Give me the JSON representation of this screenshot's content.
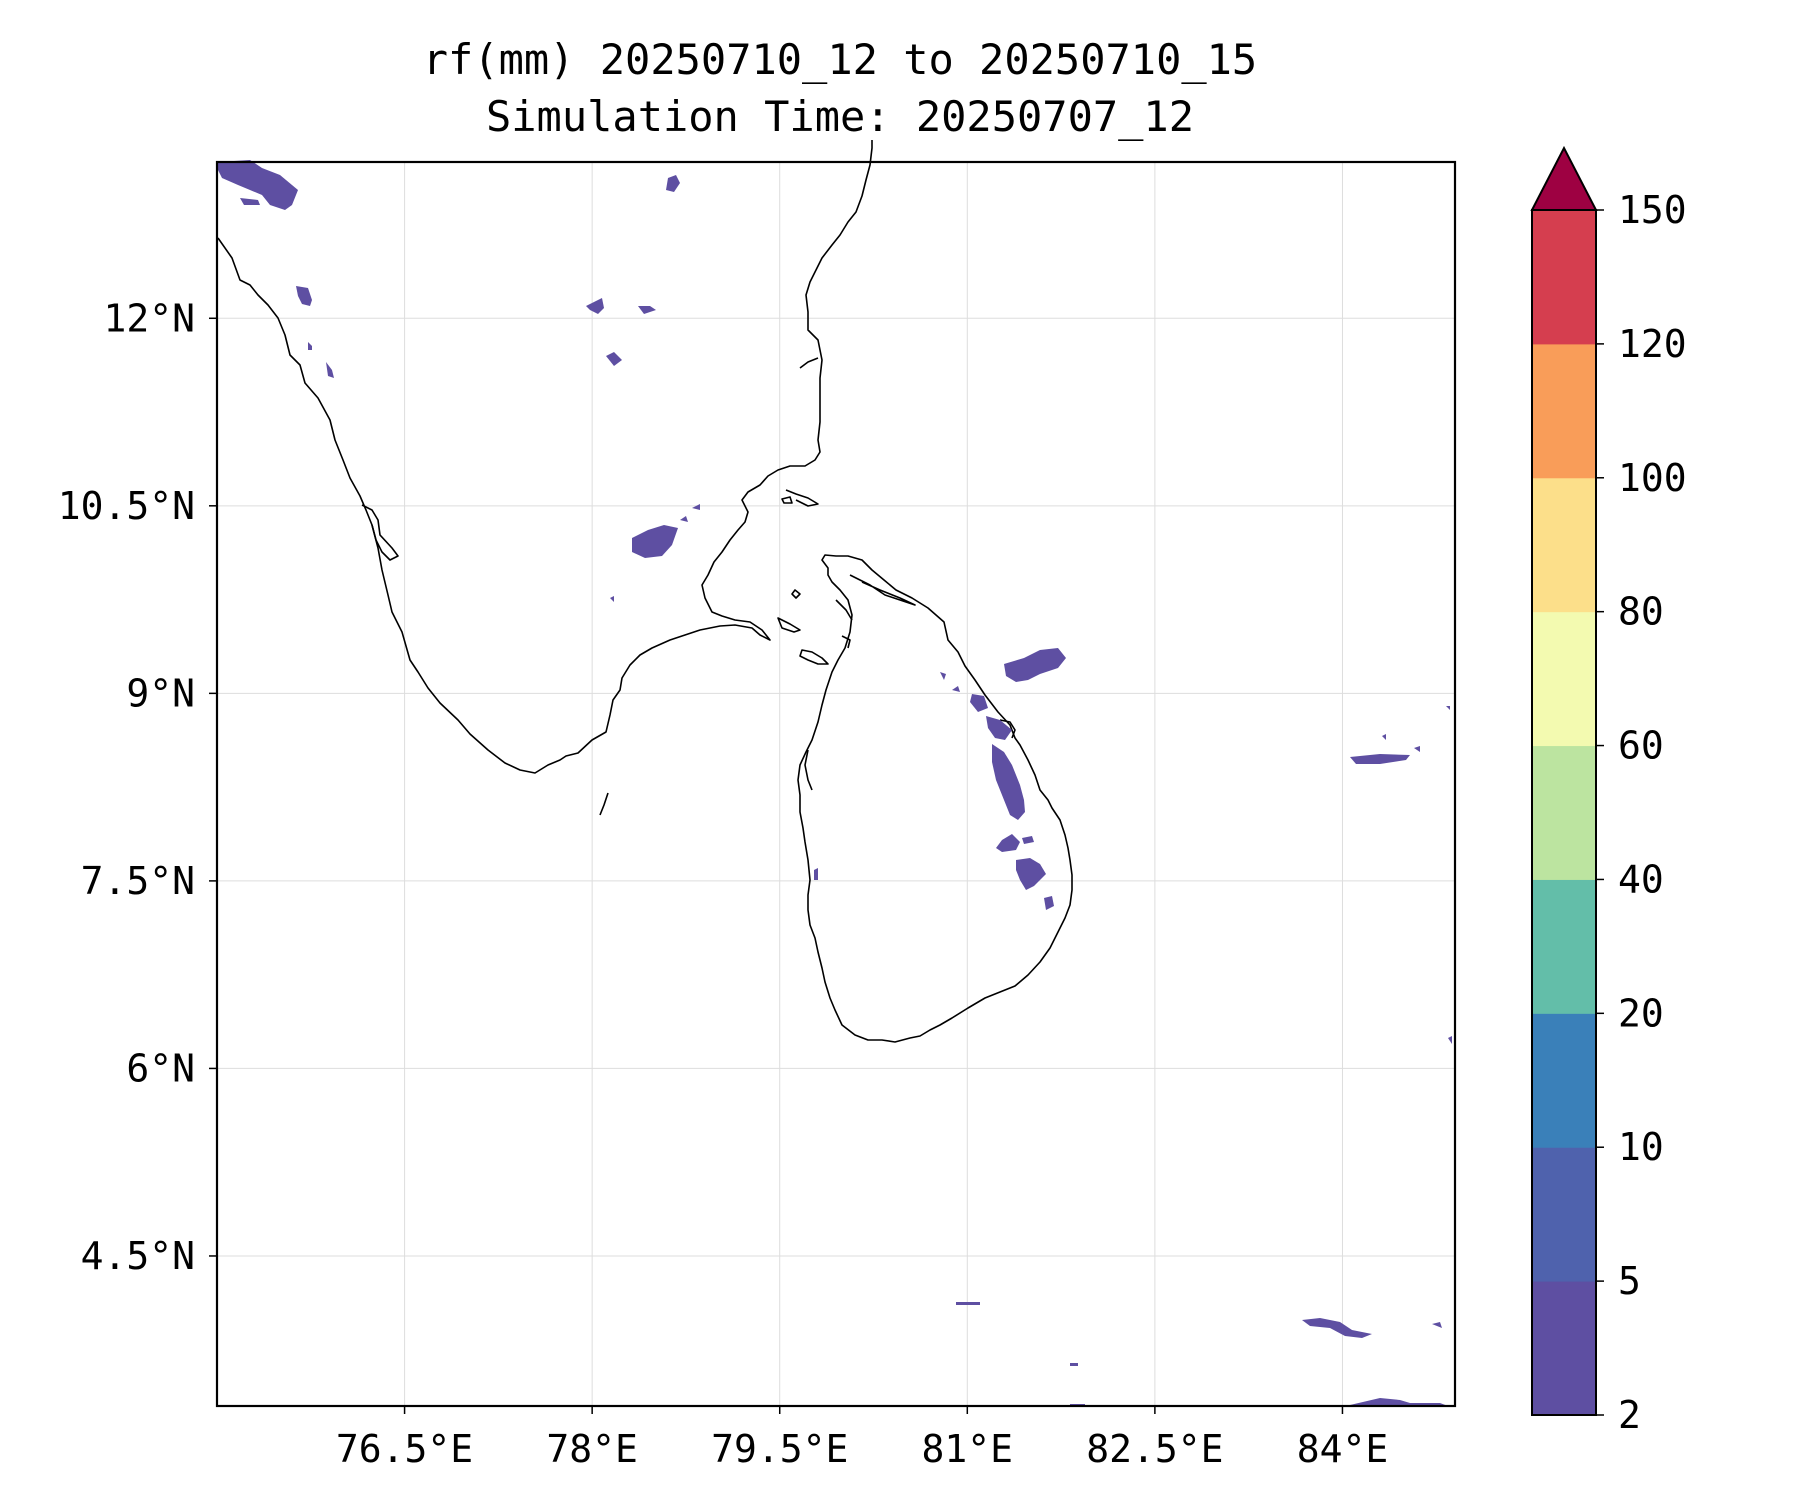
{
  "title": {
    "line1": "rf(mm) 20250710_12 to 20250710_15",
    "line2": "Simulation Time: 20250707_12"
  },
  "map": {
    "lon_range": [
      75.0,
      84.9
    ],
    "lat_range": [
      3.3,
      13.25
    ],
    "lon_ticks": [
      {
        "value": 76.5,
        "label": "76.5°E"
      },
      {
        "value": 78.0,
        "label": "78°E"
      },
      {
        "value": 79.5,
        "label": "79.5°E"
      },
      {
        "value": 81.0,
        "label": "81°E"
      },
      {
        "value": 82.5,
        "label": "82.5°E"
      },
      {
        "value": 84.0,
        "label": "84°E"
      }
    ],
    "lat_ticks": [
      {
        "value": 12.0,
        "label": "12°N"
      },
      {
        "value": 10.5,
        "label": "10.5°N"
      },
      {
        "value": 9.0,
        "label": "9°N"
      },
      {
        "value": 7.5,
        "label": "7.5°N"
      },
      {
        "value": 6.0,
        "label": "6°N"
      },
      {
        "value": 4.5,
        "label": "4.5°N"
      }
    ],
    "grid": true,
    "rain_color": "#5e4fa2"
  },
  "colorbar": {
    "boundaries": [
      2,
      5,
      10,
      20,
      40,
      60,
      80,
      100,
      120,
      150
    ],
    "labels": [
      "2",
      "5",
      "10",
      "20",
      "40",
      "60",
      "80",
      "100",
      "120",
      "150"
    ],
    "colors": [
      "#5e4fa2",
      "#4f62ad",
      "#3a80b9",
      "#63bea9",
      "#bce4a0",
      "#f3fab0",
      "#fcdf8a",
      "#f99d59",
      "#d53e4f"
    ],
    "extend_color": "#9e0142",
    "extend": "max"
  }
}
